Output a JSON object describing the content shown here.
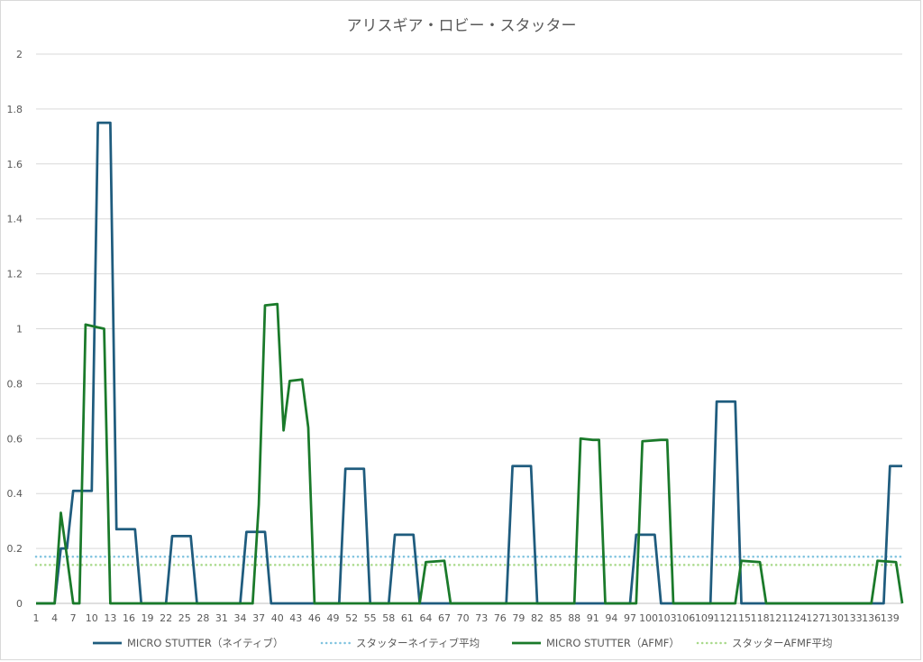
{
  "chart_data": {
    "type": "line",
    "title": "アリスギア・ロビー・スタッター",
    "xlabel": "",
    "ylabel": "",
    "ylim": [
      0,
      2
    ],
    "yticks": [
      "0",
      "0.2",
      "0.4",
      "0.6",
      "0.8",
      "1",
      "1.2",
      "1.4",
      "1.6",
      "1.8",
      "2"
    ],
    "x_range": [
      1,
      141
    ],
    "xticks": [
      "1",
      "4",
      "7",
      "10",
      "13",
      "16",
      "19",
      "22",
      "25",
      "28",
      "31",
      "34",
      "37",
      "40",
      "43",
      "46",
      "49",
      "52",
      "55",
      "58",
      "61",
      "64",
      "67",
      "70",
      "73",
      "76",
      "79",
      "82",
      "85",
      "88",
      "91",
      "94",
      "97",
      "100",
      "103",
      "106",
      "109",
      "112",
      "115",
      "118",
      "121",
      "124",
      "127",
      "130",
      "133",
      "136",
      "139"
    ],
    "grid": "horizontal",
    "legend_position": "bottom",
    "series": [
      {
        "name": "MICRO STUTTER（ネイティブ）",
        "style": "solid",
        "color": "#1f5c7e",
        "points": [
          [
            1,
            0
          ],
          [
            4,
            0
          ],
          [
            5,
            0.2
          ],
          [
            6,
            0.2
          ],
          [
            7,
            0.41
          ],
          [
            9,
            0.41
          ],
          [
            10,
            0.41
          ],
          [
            11,
            1.75
          ],
          [
            13,
            1.75
          ],
          [
            14,
            0.27
          ],
          [
            17,
            0.27
          ],
          [
            18,
            0
          ],
          [
            21,
            0
          ],
          [
            22,
            0
          ],
          [
            23,
            0.245
          ],
          [
            26,
            0.245
          ],
          [
            27,
            0
          ],
          [
            34,
            0
          ],
          [
            35,
            0.26
          ],
          [
            38,
            0.26
          ],
          [
            39,
            0
          ],
          [
            50,
            0
          ],
          [
            51,
            0.49
          ],
          [
            54,
            0.49
          ],
          [
            55,
            0
          ],
          [
            58,
            0
          ],
          [
            59,
            0.25
          ],
          [
            62,
            0.25
          ],
          [
            63,
            0
          ],
          [
            77,
            0
          ],
          [
            78,
            0.5
          ],
          [
            81,
            0.5
          ],
          [
            82,
            0
          ],
          [
            96,
            0
          ],
          [
            97,
            0
          ],
          [
            98,
            0.25
          ],
          [
            101,
            0.25
          ],
          [
            102,
            0
          ],
          [
            110,
            0
          ],
          [
            111,
            0.735
          ],
          [
            114,
            0.735
          ],
          [
            115,
            0
          ],
          [
            137,
            0
          ],
          [
            138,
            0
          ],
          [
            139,
            0.5
          ],
          [
            141,
            0.5
          ]
        ]
      },
      {
        "name": "スタッターネイティブ平均",
        "style": "dotted",
        "color": "#7fc3df",
        "points": [
          [
            1,
            0.17
          ],
          [
            141,
            0.17
          ]
        ]
      },
      {
        "name": "MICRO STUTTER（AFMF）",
        "style": "solid",
        "color": "#1a7a2a",
        "points": [
          [
            1,
            0
          ],
          [
            4,
            0
          ],
          [
            5,
            0.33
          ],
          [
            6,
            0.17
          ],
          [
            7,
            0
          ],
          [
            8,
            0
          ],
          [
            9,
            1.015
          ],
          [
            11,
            1.005
          ],
          [
            12,
            1.0
          ],
          [
            13,
            0
          ],
          [
            36,
            0
          ],
          [
            37,
            0.36
          ],
          [
            38,
            1.085
          ],
          [
            40,
            1.09
          ],
          [
            41,
            0.63
          ],
          [
            42,
            0.81
          ],
          [
            44,
            0.815
          ],
          [
            45,
            0.64
          ],
          [
            46,
            0
          ],
          [
            63,
            0
          ],
          [
            64,
            0.15
          ],
          [
            67,
            0.155
          ],
          [
            68,
            0
          ],
          [
            88,
            0
          ],
          [
            89,
            0.6
          ],
          [
            91,
            0.595
          ],
          [
            92,
            0.595
          ],
          [
            93,
            0
          ],
          [
            98,
            0
          ],
          [
            99,
            0.59
          ],
          [
            102,
            0.595
          ],
          [
            103,
            0.595
          ],
          [
            104,
            0
          ],
          [
            114,
            0
          ],
          [
            115,
            0.155
          ],
          [
            118,
            0.15
          ],
          [
            119,
            0
          ],
          [
            136,
            0
          ],
          [
            137,
            0.155
          ],
          [
            140,
            0.15
          ],
          [
            141,
            0
          ]
        ]
      },
      {
        "name": "スタッターAFMF平均",
        "style": "dotted",
        "color": "#a8d98a",
        "points": [
          [
            1,
            0.14
          ],
          [
            141,
            0.14
          ]
        ]
      }
    ]
  }
}
